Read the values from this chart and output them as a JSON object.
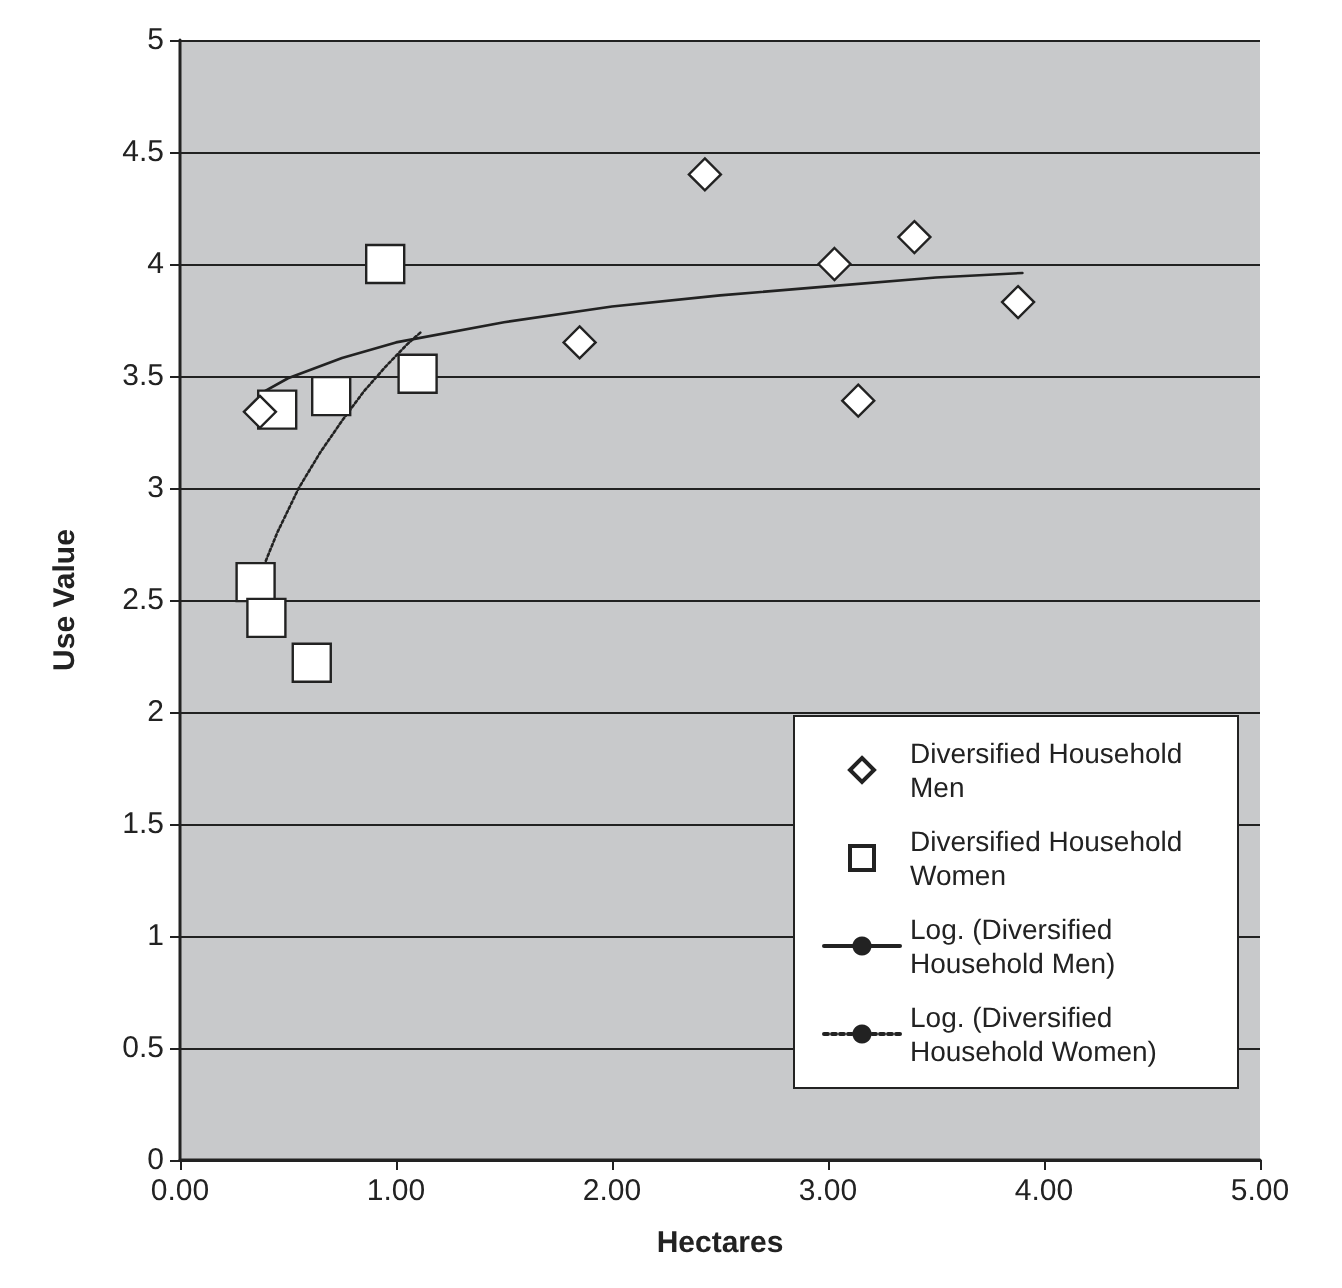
{
  "chart_data": {
    "type": "scatter",
    "xlabel": "Hectares",
    "ylabel": "Use Value",
    "xlim": [
      0,
      5
    ],
    "xticks": [
      {
        "value": 0,
        "label": "0.00"
      },
      {
        "value": 1,
        "label": "1.00"
      },
      {
        "value": 2,
        "label": "2.00"
      },
      {
        "value": 3,
        "label": "3.00"
      },
      {
        "value": 4,
        "label": "4.00"
      },
      {
        "value": 5,
        "label": "5.00"
      }
    ],
    "ylim": [
      0,
      5
    ],
    "yticks": [
      0,
      0.5,
      1,
      1.5,
      2,
      2.5,
      3,
      3.5,
      4,
      4.5,
      5
    ],
    "grid": "y",
    "legend": "bottom right",
    "series": [
      {
        "name": "Diversified Household Men",
        "type": "scatter",
        "marker": "diamond",
        "color": "#ffffff",
        "x": [
          0.37,
          1.85,
          2.43,
          3.03,
          3.4,
          3.14,
          3.88
        ],
        "values": [
          3.34,
          3.65,
          4.4,
          4.0,
          4.12,
          3.39,
          3.83
        ]
      },
      {
        "name": "Diversified Household Women",
        "type": "scatter",
        "marker": "square",
        "color": "#ffffff",
        "x": [
          0.95,
          1.1,
          0.7,
          0.45,
          0.35,
          0.4,
          0.61
        ],
        "values": [
          4.0,
          3.51,
          3.41,
          3.35,
          2.58,
          2.42,
          2.22
        ]
      },
      {
        "name": "Log. (Diversified Household Men)",
        "type": "line",
        "marker": "none",
        "line_style": "solid",
        "color": "#222222",
        "x": [
          0.37,
          0.5,
          0.75,
          1,
          1.5,
          2,
          2.5,
          3,
          3.5,
          3.9
        ],
        "values": [
          3.42,
          3.49,
          3.58,
          3.65,
          3.74,
          3.81,
          3.86,
          3.9,
          3.94,
          3.96
        ]
      },
      {
        "name": "Log. (Diversified Household Women)",
        "type": "line",
        "marker": "none",
        "line_style": "dotted",
        "color": "#222222",
        "x": [
          0.37,
          0.45,
          0.55,
          0.65,
          0.75,
          0.85,
          0.95,
          1.05,
          1.12
        ],
        "values": [
          2.61,
          2.8,
          3.0,
          3.16,
          3.3,
          3.43,
          3.54,
          3.64,
          3.7
        ]
      }
    ]
  }
}
